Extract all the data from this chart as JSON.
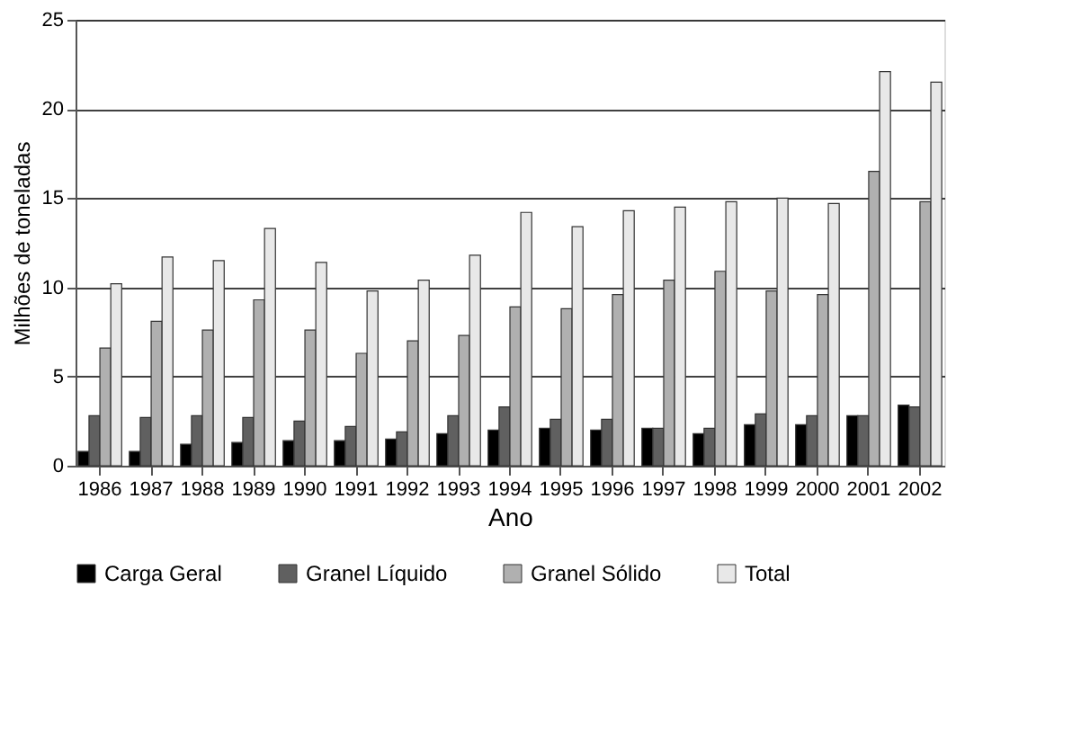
{
  "chart_data": {
    "type": "bar",
    "xlabel": "Ano",
    "ylabel": "Milhões de toneladas",
    "categories": [
      "1986",
      "1987",
      "1988",
      "1989",
      "1990",
      "1991",
      "1992",
      "1993",
      "1994",
      "1995",
      "1996",
      "1997",
      "1998",
      "1999",
      "2000",
      "2001",
      "2002"
    ],
    "series": [
      {
        "name": "Carga Geral",
        "color": "#000000",
        "values": [
          0.8,
          0.8,
          1.2,
          1.3,
          1.4,
          1.4,
          1.5,
          1.8,
          2.0,
          2.1,
          2.0,
          2.1,
          1.8,
          2.3,
          2.3,
          2.8,
          3.4
        ]
      },
      {
        "name": "Granel Líquido",
        "color": "#606060",
        "values": [
          2.8,
          2.7,
          2.8,
          2.7,
          2.5,
          2.2,
          1.9,
          2.8,
          3.3,
          2.6,
          2.6,
          2.1,
          2.1,
          2.9,
          2.8,
          2.8,
          3.3
        ]
      },
      {
        "name": "Granel Sólido",
        "color": "#b0b0b0",
        "values": [
          6.6,
          8.1,
          7.6,
          9.3,
          7.6,
          6.3,
          7.0,
          7.3,
          8.9,
          8.8,
          9.6,
          10.4,
          10.9,
          9.8,
          9.6,
          16.5,
          14.8
        ]
      },
      {
        "name": "Total",
        "color": "#e8e8e8",
        "values": [
          10.2,
          11.7,
          11.5,
          13.3,
          11.4,
          9.8,
          10.4,
          11.8,
          14.2,
          13.4,
          14.3,
          14.5,
          14.8,
          15.0,
          14.7,
          22.1,
          21.5
        ]
      }
    ],
    "ylim": [
      0,
      25
    ],
    "yticks": [
      0,
      5,
      10,
      15,
      20,
      25
    ],
    "grid": "y",
    "legend": "bottom"
  }
}
